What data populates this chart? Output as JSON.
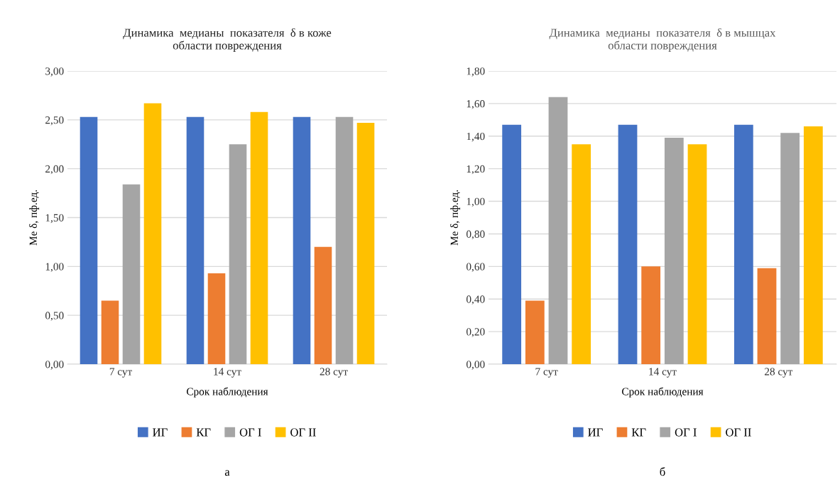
{
  "chart_data": [
    {
      "type": "bar",
      "title": "Динамика  медианы  показателя  δ в коже\nобласти повреждения",
      "xlabel": "Срок наблюдения",
      "ylabel": "Me δ, пф.ед.",
      "categories": [
        "7 сут",
        "14 сут",
        "28 сут"
      ],
      "series": [
        {
          "name": "ИГ",
          "color": "#4472c4",
          "values": [
            2.53,
            2.53,
            2.53
          ]
        },
        {
          "name": "КГ",
          "color": "#ed7d31",
          "values": [
            0.65,
            0.93,
            1.2
          ]
        },
        {
          "name": "ОГ I",
          "color": "#a5a5a5",
          "values": [
            1.84,
            2.25,
            2.53
          ]
        },
        {
          "name": "ОГ II",
          "color": "#ffc000",
          "values": [
            2.67,
            2.58,
            2.47
          ]
        }
      ],
      "ylim": [
        0,
        3
      ],
      "yticks": [
        {
          "value": 0,
          "label": "0,00"
        },
        {
          "value": 0.5,
          "label": "0,50"
        },
        {
          "value": 1,
          "label": "1,00"
        },
        {
          "value": 1.5,
          "label": "1,50"
        },
        {
          "value": 2,
          "label": "2,00"
        },
        {
          "value": 2.5,
          "label": "2,50"
        },
        {
          "value": 3,
          "label": "3,00"
        }
      ],
      "grid": "y",
      "legend": "bottom",
      "annotations": [
        "а"
      ]
    },
    {
      "type": "bar",
      "title": "Динамика  медианы  показателя  δ в мышцах\nобласти повреждения",
      "xlabel": "Срок наблюдения",
      "ylabel": "Me δ, пф.ед.",
      "categories": [
        "7 сут",
        "14 сут",
        "28 сут"
      ],
      "series": [
        {
          "name": "ИГ",
          "color": "#4472c4",
          "values": [
            1.47,
            1.47,
            1.47
          ]
        },
        {
          "name": "КГ",
          "color": "#ed7d31",
          "values": [
            0.39,
            0.6,
            0.59
          ]
        },
        {
          "name": "ОГ I",
          "color": "#a5a5a5",
          "values": [
            1.64,
            1.39,
            1.42
          ]
        },
        {
          "name": "ОГ II",
          "color": "#ffc000",
          "values": [
            1.35,
            1.35,
            1.46
          ]
        }
      ],
      "ylim": [
        0,
        1.8
      ],
      "yticks": [
        {
          "value": 0,
          "label": "0,00"
        },
        {
          "value": 0.2,
          "label": "0,20"
        },
        {
          "value": 0.4,
          "label": "0,40"
        },
        {
          "value": 0.6,
          "label": "0,60"
        },
        {
          "value": 0.8,
          "label": "0,80"
        },
        {
          "value": 1.0,
          "label": "1,00"
        },
        {
          "value": 1.2,
          "label": "1,20"
        },
        {
          "value": 1.4,
          "label": "1,40"
        },
        {
          "value": 1.6,
          "label": "1,60"
        },
        {
          "value": 1.8,
          "label": "1,80"
        }
      ],
      "grid": "y",
      "legend": "bottom",
      "annotations": [
        "б"
      ]
    }
  ]
}
